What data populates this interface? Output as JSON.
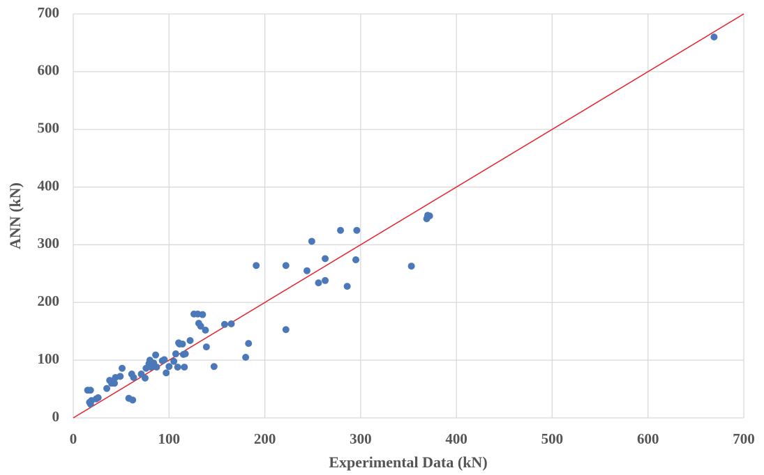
{
  "chart_data": {
    "type": "scatter",
    "x_label": "Experimental Data (kN)",
    "y_label": "ANN (kN)",
    "xlim": [
      0,
      700
    ],
    "ylim": [
      0,
      700
    ],
    "xticks": [
      0,
      100,
      200,
      300,
      400,
      500,
      600,
      700
    ],
    "yticks": [
      0,
      100,
      200,
      300,
      400,
      500,
      600,
      700
    ],
    "grid": true,
    "color": "#4a78b8",
    "x": [
      15,
      18,
      17,
      19,
      18,
      24,
      26,
      35,
      38,
      40,
      43,
      44,
      49,
      51,
      58,
      62,
      61,
      63,
      71,
      75,
      76,
      79,
      80,
      81,
      84,
      86,
      87,
      93,
      95,
      97,
      100,
      105,
      107,
      109,
      110,
      111,
      114,
      115,
      117,
      116,
      122,
      126,
      130,
      131,
      133,
      135,
      138,
      139,
      147,
      158,
      165,
      180,
      183,
      191,
      222,
      222,
      244,
      249,
      256,
      263,
      263,
      279,
      286,
      295,
      296,
      353,
      369,
      370,
      372,
      669
    ],
    "y": [
      48,
      48,
      27,
      30,
      24,
      33,
      35,
      51,
      65,
      60,
      60,
      70,
      72,
      86,
      34,
      31,
      76,
      70,
      76,
      69,
      86,
      94,
      100,
      88,
      95,
      109,
      88,
      99,
      101,
      78,
      89,
      98,
      111,
      88,
      130,
      128,
      128,
      110,
      111,
      88,
      134,
      180,
      180,
      164,
      159,
      179,
      152,
      123,
      89,
      162,
      163,
      105,
      129,
      264,
      264,
      153,
      255,
      306,
      234,
      238,
      276,
      325,
      228,
      274,
      325,
      263,
      345,
      351,
      350,
      660
    ],
    "reference_line": {
      "x": [
        0,
        700
      ],
      "y": [
        0,
        700
      ],
      "color": "#e8202a"
    }
  }
}
